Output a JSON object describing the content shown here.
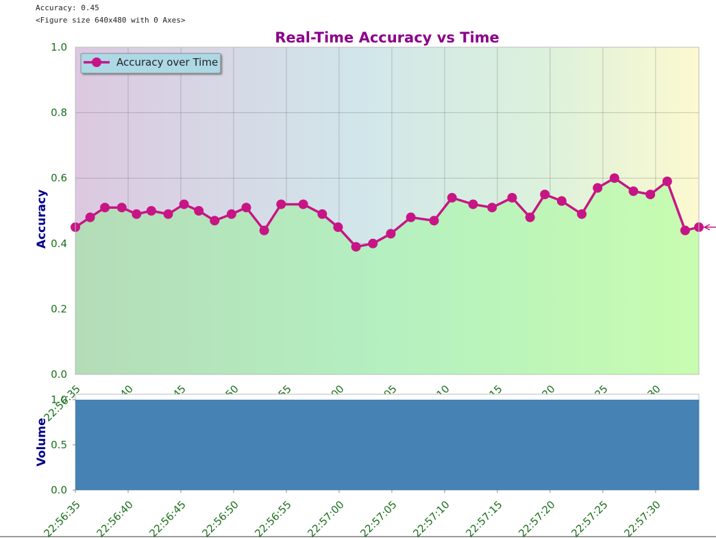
{
  "console": [
    "Accuracy: 0.45",
    "<Figure size 640x480 with 0 Axes>"
  ],
  "chart_data": [
    {
      "type": "line",
      "title": "Real-Time Accuracy vs Time",
      "ylabel": "Accuracy",
      "legend": "upper left",
      "grid": true,
      "x": [
        "22:56:35.0",
        "22:56:36.4",
        "22:56:37.8",
        "22:56:39.4",
        "22:56:40.8",
        "22:56:42.2",
        "22:56:43.8",
        "22:56:45.3",
        "22:56:46.7",
        "22:56:48.2",
        "22:56:49.8",
        "22:56:51.2",
        "22:56:52.9",
        "22:56:54.5",
        "22:56:56.6",
        "22:56:58.4",
        "22:56:59.9",
        "22:57:01.6",
        "22:57:03.2",
        "22:57:04.9",
        "22:57:06.8",
        "22:57:09.0",
        "22:57:10.7",
        "22:57:12.7",
        "22:57:14.5",
        "22:57:16.4",
        "22:57:18.1",
        "22:57:19.5",
        "22:57:21.1",
        "22:57:23.0",
        "22:57:24.5",
        "22:57:26.1",
        "22:57:27.9",
        "22:57:29.5",
        "22:57:31.1",
        "22:57:32.8",
        "22:57:34.1"
      ],
      "series": [
        {
          "name": "Accuracy over Time",
          "color": "#c71585",
          "values": [
            0.45,
            0.48,
            0.51,
            0.51,
            0.49,
            0.5,
            0.49,
            0.52,
            0.5,
            0.47,
            0.49,
            0.51,
            0.44,
            0.52,
            0.52,
            0.49,
            0.45,
            0.39,
            0.4,
            0.43,
            0.48,
            0.47,
            0.54,
            0.52,
            0.51,
            0.54,
            0.48,
            0.55,
            0.53,
            0.49,
            0.57,
            0.6,
            0.56,
            0.55,
            0.59,
            0.44,
            0.45
          ]
        }
      ],
      "xlim": [
        "22:56:35",
        "22:57:34.1"
      ],
      "xticks": [
        "22:56:35",
        "22:56:40",
        "22:56:45",
        "22:56:50",
        "22:56:55",
        "22:57:00",
        "22:57:05",
        "22:57:10",
        "22:57:15",
        "22:57:20",
        "22:57:25",
        "22:57:30"
      ],
      "ylim": [
        0,
        1
      ],
      "yticks": [
        {
          "value": 0,
          "label": "0.0"
        },
        {
          "value": 0.2,
          "label": "0.2"
        },
        {
          "value": 0.4,
          "label": "0.4"
        },
        {
          "value": 0.6,
          "label": "0.6"
        },
        {
          "value": 0.8,
          "label": "0.8"
        },
        {
          "value": 1,
          "label": "1.0"
        }
      ]
    },
    {
      "type": "bar",
      "ylabel": "Volume",
      "color": "#4682b4",
      "x": [
        "22:56:35.0",
        "22:56:36.4",
        "22:56:37.8",
        "22:56:39.4",
        "22:56:40.8",
        "22:56:42.2",
        "22:56:43.8",
        "22:56:45.3",
        "22:56:46.7",
        "22:56:48.2",
        "22:56:49.8",
        "22:56:51.2",
        "22:56:52.9",
        "22:56:54.5",
        "22:56:56.6",
        "22:56:58.4",
        "22:56:59.9",
        "22:57:01.6",
        "22:57:03.2",
        "22:57:04.9",
        "22:57:06.8",
        "22:57:09.0",
        "22:57:10.7",
        "22:57:12.7",
        "22:57:14.5",
        "22:57:16.4",
        "22:57:18.1",
        "22:57:19.5",
        "22:57:21.1",
        "22:57:23.0",
        "22:57:24.5",
        "22:57:26.1",
        "22:57:27.9",
        "22:57:29.5",
        "22:57:31.1",
        "22:57:32.8",
        "22:57:34.1"
      ],
      "values": [
        1,
        1,
        1,
        1,
        1,
        1,
        1,
        1,
        1,
        1,
        1,
        1,
        1,
        1,
        1,
        1,
        1,
        1,
        1,
        1,
        1,
        1,
        1,
        1,
        1,
        1,
        1,
        1,
        1,
        1,
        1,
        1,
        1,
        1,
        1,
        1,
        1
      ],
      "xlim": [
        "22:56:35",
        "22:57:34.1"
      ],
      "xticks": [
        "22:56:35",
        "22:56:40",
        "22:56:45",
        "22:56:50",
        "22:56:55",
        "22:57:00",
        "22:57:05",
        "22:57:10",
        "22:57:15",
        "22:57:20",
        "22:57:25",
        "22:57:30"
      ],
      "ylim": [
        0,
        1.06
      ],
      "yticks": [
        {
          "value": 0,
          "label": "0.0"
        },
        {
          "value": 0.5,
          "label": "0.5"
        },
        {
          "value": 1,
          "label": "1.0"
        }
      ]
    }
  ]
}
